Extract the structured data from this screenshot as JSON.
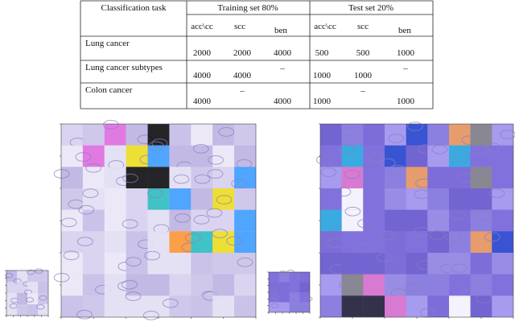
{
  "table": {
    "header": [
      "Classification task",
      "Training set 80%",
      "Test set 20%"
    ],
    "subheader": [
      "acc\\cc",
      "scc",
      "ben",
      "acc\\cc",
      "scc",
      "ben"
    ],
    "rows": [
      [
        "Lung cancer",
        2000,
        2000,
        4000,
        500,
        500,
        1000
      ],
      [
        "Lung cancer subtypes",
        4000,
        4000,
        "–",
        1000,
        1000,
        "–"
      ],
      [
        "Colon cancer",
        4000,
        "–",
        4000,
        1000,
        "–",
        1000
      ]
    ]
  }
}
